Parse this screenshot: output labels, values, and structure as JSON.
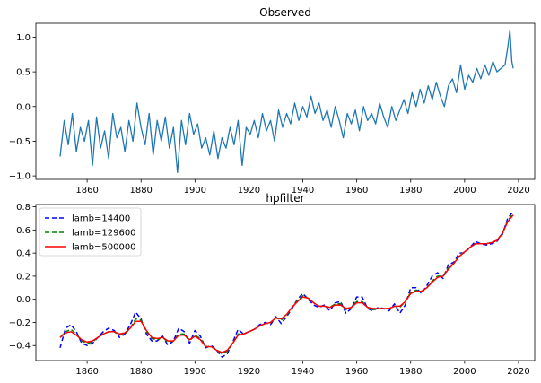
{
  "chart_data": [
    {
      "type": "line",
      "title": "Observed",
      "xlabel": "",
      "ylabel": "",
      "xlim": [
        1841,
        2026
      ],
      "ylim": [
        -1.05,
        1.2
      ],
      "xticks": [
        1860,
        1880,
        1900,
        1920,
        1940,
        1960,
        1980,
        2000,
        2020
      ],
      "yticks": [
        -1.0,
        -0.5,
        0.0,
        0.5,
        1.0
      ],
      "ytick_labels": [
        "−1.0",
        "−0.5",
        "0.0",
        "0.5",
        "1.0"
      ],
      "grid": false,
      "legend": null,
      "series": [
        {
          "color": "#1f77b4",
          "x": [
            1850.0,
            1851.5,
            1853.0,
            1854.5,
            1856.0,
            1857.5,
            1859.0,
            1860.5,
            1862.0,
            1863.5,
            1865.0,
            1866.5,
            1868.0,
            1869.5,
            1871.0,
            1872.5,
            1874.0,
            1875.5,
            1877.0,
            1878.5,
            1880.0,
            1881.5,
            1883.0,
            1884.5,
            1886.0,
            1887.5,
            1889.0,
            1890.5,
            1892.0,
            1893.5,
            1895.0,
            1896.5,
            1898.0,
            1899.5,
            1901.0,
            1902.5,
            1904.0,
            1905.5,
            1907.0,
            1908.5,
            1910.0,
            1911.5,
            1913.0,
            1914.5,
            1916.0,
            1917.5,
            1919.0,
            1920.5,
            1922.0,
            1923.5,
            1925.0,
            1926.5,
            1928.0,
            1929.5,
            1931.0,
            1932.5,
            1934.0,
            1935.5,
            1937.0,
            1938.5,
            1940.0,
            1941.5,
            1943.0,
            1944.5,
            1946.0,
            1947.5,
            1949.0,
            1950.5,
            1952.0,
            1953.5,
            1955.0,
            1956.5,
            1958.0,
            1959.5,
            1961.0,
            1962.5,
            1964.0,
            1965.5,
            1967.0,
            1968.5,
            1970.0,
            1971.5,
            1973.0,
            1974.5,
            1976.0,
            1977.5,
            1979.0,
            1980.5,
            1982.0,
            1983.5,
            1985.0,
            1986.5,
            1988.0,
            1989.5,
            1991.0,
            1992.5,
            1994.0,
            1995.5,
            1997.0,
            1998.5,
            2000.0,
            2001.5,
            2003.0,
            2004.5,
            2006.0,
            2007.5,
            2009.0,
            2010.5,
            2012.0,
            2013.5,
            2015.0,
            2016.0,
            2016.8,
            2017.5,
            2018.0
          ],
          "y": [
            -0.72,
            -0.2,
            -0.55,
            -0.1,
            -0.65,
            -0.3,
            -0.5,
            -0.2,
            -0.85,
            -0.15,
            -0.6,
            -0.35,
            -0.75,
            -0.1,
            -0.45,
            -0.3,
            -0.65,
            -0.2,
            -0.5,
            0.05,
            -0.3,
            -0.55,
            -0.1,
            -0.7,
            -0.2,
            -0.5,
            -0.15,
            -0.6,
            -0.3,
            -0.95,
            -0.2,
            -0.55,
            -0.1,
            -0.4,
            -0.25,
            -0.6,
            -0.45,
            -0.7,
            -0.35,
            -0.75,
            -0.45,
            -0.6,
            -0.3,
            -0.55,
            -0.2,
            -0.85,
            -0.3,
            -0.4,
            -0.2,
            -0.45,
            -0.1,
            -0.35,
            -0.2,
            -0.5,
            -0.05,
            -0.3,
            -0.1,
            -0.25,
            0.05,
            -0.2,
            0.0,
            -0.15,
            0.15,
            -0.1,
            0.05,
            -0.2,
            -0.05,
            -0.3,
            0.0,
            -0.2,
            -0.45,
            -0.1,
            -0.25,
            -0.05,
            -0.35,
            0.0,
            -0.2,
            -0.1,
            -0.25,
            0.05,
            -0.15,
            -0.3,
            0.0,
            -0.2,
            -0.05,
            0.1,
            -0.1,
            0.2,
            0.0,
            0.25,
            0.05,
            0.3,
            0.1,
            0.35,
            0.15,
            0.0,
            0.3,
            0.4,
            0.2,
            0.6,
            0.25,
            0.45,
            0.35,
            0.55,
            0.4,
            0.6,
            0.45,
            0.65,
            0.5,
            0.55,
            0.6,
            0.85,
            1.1,
            0.65,
            0.55
          ]
        }
      ]
    },
    {
      "type": "line",
      "title": "hpfilter",
      "xlabel": "",
      "ylabel": "",
      "xlim": [
        1841,
        2026
      ],
      "ylim": [
        -0.53,
        0.82
      ],
      "xticks": [
        1860,
        1880,
        1900,
        1920,
        1940,
        1960,
        1980,
        2000,
        2020
      ],
      "yticks": [
        -0.4,
        -0.2,
        0.0,
        0.2,
        0.4,
        0.6,
        0.8
      ],
      "ytick_labels": [
        "−0.4",
        "−0.2",
        "0.0",
        "0.2",
        "0.4",
        "0.6",
        "0.8"
      ],
      "grid": false,
      "legend": "top-left",
      "series": [
        {
          "name": "lamb=14400",
          "color": "#0000ff",
          "dash": "dashed",
          "x": [
            1850,
            1852,
            1854,
            1856,
            1858,
            1860,
            1862,
            1864,
            1866,
            1868,
            1870,
            1872,
            1874,
            1876,
            1878,
            1880,
            1882,
            1884,
            1886,
            1888,
            1890,
            1892,
            1894,
            1896,
            1898,
            1900,
            1902,
            1904,
            1906,
            1908,
            1910,
            1912,
            1914,
            1916,
            1918,
            1920,
            1922,
            1924,
            1926,
            1928,
            1930,
            1932,
            1934,
            1936,
            1938,
            1940,
            1942,
            1944,
            1946,
            1948,
            1950,
            1952,
            1954,
            1956,
            1958,
            1960,
            1962,
            1964,
            1966,
            1968,
            1970,
            1972,
            1974,
            1976,
            1978,
            1980,
            1982,
            1984,
            1986,
            1988,
            1990,
            1992,
            1994,
            1996,
            1998,
            2000,
            2002,
            2004,
            2006,
            2008,
            2010,
            2012,
            2014,
            2016,
            2018
          ],
          "y": [
            -0.42,
            -0.25,
            -0.22,
            -0.28,
            -0.38,
            -0.4,
            -0.38,
            -0.33,
            -0.28,
            -0.25,
            -0.27,
            -0.33,
            -0.3,
            -0.22,
            -0.11,
            -0.17,
            -0.3,
            -0.36,
            -0.36,
            -0.32,
            -0.4,
            -0.36,
            -0.25,
            -0.28,
            -0.38,
            -0.27,
            -0.32,
            -0.42,
            -0.4,
            -0.44,
            -0.5,
            -0.47,
            -0.37,
            -0.26,
            -0.3,
            -0.28,
            -0.26,
            -0.22,
            -0.2,
            -0.22,
            -0.15,
            -0.21,
            -0.15,
            -0.08,
            0.0,
            0.05,
            0.0,
            -0.05,
            -0.07,
            -0.05,
            -0.1,
            -0.03,
            -0.02,
            -0.12,
            -0.08,
            0.02,
            0.02,
            -0.08,
            -0.1,
            -0.07,
            -0.08,
            -0.1,
            -0.04,
            -0.12,
            -0.05,
            0.1,
            0.1,
            0.05,
            0.12,
            0.2,
            0.23,
            0.18,
            0.3,
            0.32,
            0.4,
            0.4,
            0.45,
            0.5,
            0.48,
            0.47,
            0.48,
            0.5,
            0.56,
            0.7,
            0.76
          ]
        },
        {
          "name": "lamb=129600",
          "color": "#008000",
          "dash": "dashed",
          "x": [
            1850,
            1852,
            1854,
            1856,
            1858,
            1860,
            1862,
            1864,
            1866,
            1868,
            1870,
            1872,
            1874,
            1876,
            1878,
            1880,
            1882,
            1884,
            1886,
            1888,
            1890,
            1892,
            1894,
            1896,
            1898,
            1900,
            1902,
            1904,
            1906,
            1908,
            1910,
            1912,
            1914,
            1916,
            1918,
            1920,
            1922,
            1924,
            1926,
            1928,
            1930,
            1932,
            1934,
            1936,
            1938,
            1940,
            1942,
            1944,
            1946,
            1948,
            1950,
            1952,
            1954,
            1956,
            1958,
            1960,
            1962,
            1964,
            1966,
            1968,
            1970,
            1972,
            1974,
            1976,
            1978,
            1980,
            1982,
            1984,
            1986,
            1988,
            1990,
            1992,
            1994,
            1996,
            1998,
            2000,
            2002,
            2004,
            2006,
            2008,
            2010,
            2012,
            2014,
            2016,
            2018
          ],
          "y": [
            -0.33,
            -0.28,
            -0.26,
            -0.3,
            -0.36,
            -0.38,
            -0.37,
            -0.33,
            -0.3,
            -0.28,
            -0.28,
            -0.31,
            -0.3,
            -0.25,
            -0.17,
            -0.18,
            -0.28,
            -0.34,
            -0.35,
            -0.33,
            -0.37,
            -0.36,
            -0.3,
            -0.3,
            -0.36,
            -0.31,
            -0.34,
            -0.41,
            -0.41,
            -0.44,
            -0.47,
            -0.45,
            -0.38,
            -0.3,
            -0.3,
            -0.28,
            -0.26,
            -0.23,
            -0.21,
            -0.2,
            -0.16,
            -0.18,
            -0.14,
            -0.07,
            -0.01,
            0.03,
            0.01,
            -0.03,
            -0.06,
            -0.06,
            -0.07,
            -0.04,
            -0.04,
            -0.09,
            -0.07,
            -0.02,
            -0.02,
            -0.07,
            -0.09,
            -0.08,
            -0.08,
            -0.08,
            -0.06,
            -0.07,
            -0.02,
            0.06,
            0.08,
            0.07,
            0.1,
            0.16,
            0.2,
            0.2,
            0.27,
            0.31,
            0.38,
            0.41,
            0.45,
            0.48,
            0.48,
            0.48,
            0.49,
            0.51,
            0.57,
            0.68,
            0.74
          ]
        },
        {
          "name": "lamb=500000",
          "color": "#ff0000",
          "dash": "solid",
          "x": [
            1850,
            1852,
            1854,
            1856,
            1858,
            1860,
            1862,
            1864,
            1866,
            1868,
            1870,
            1872,
            1874,
            1876,
            1878,
            1880,
            1882,
            1884,
            1886,
            1888,
            1890,
            1892,
            1894,
            1896,
            1898,
            1900,
            1902,
            1904,
            1906,
            1908,
            1910,
            1912,
            1914,
            1916,
            1918,
            1920,
            1922,
            1924,
            1926,
            1928,
            1930,
            1932,
            1934,
            1936,
            1938,
            1940,
            1942,
            1944,
            1946,
            1948,
            1950,
            1952,
            1954,
            1956,
            1958,
            1960,
            1962,
            1964,
            1966,
            1968,
            1970,
            1972,
            1974,
            1976,
            1978,
            1980,
            1982,
            1984,
            1986,
            1988,
            1990,
            1992,
            1994,
            1996,
            1998,
            2000,
            2002,
            2004,
            2006,
            2008,
            2010,
            2012,
            2014,
            2016,
            2018
          ],
          "y": [
            -0.33,
            -0.29,
            -0.28,
            -0.31,
            -0.35,
            -0.37,
            -0.36,
            -0.33,
            -0.3,
            -0.28,
            -0.28,
            -0.3,
            -0.29,
            -0.25,
            -0.19,
            -0.19,
            -0.27,
            -0.33,
            -0.34,
            -0.33,
            -0.36,
            -0.36,
            -0.31,
            -0.31,
            -0.35,
            -0.32,
            -0.35,
            -0.41,
            -0.41,
            -0.44,
            -0.46,
            -0.44,
            -0.38,
            -0.31,
            -0.3,
            -0.28,
            -0.26,
            -0.23,
            -0.21,
            -0.2,
            -0.16,
            -0.17,
            -0.13,
            -0.07,
            -0.02,
            0.02,
            0.01,
            -0.03,
            -0.06,
            -0.06,
            -0.07,
            -0.05,
            -0.05,
            -0.08,
            -0.07,
            -0.03,
            -0.03,
            -0.07,
            -0.08,
            -0.08,
            -0.08,
            -0.08,
            -0.06,
            -0.06,
            -0.02,
            0.05,
            0.07,
            0.07,
            0.1,
            0.15,
            0.19,
            0.2,
            0.26,
            0.31,
            0.37,
            0.41,
            0.45,
            0.48,
            0.48,
            0.48,
            0.49,
            0.51,
            0.57,
            0.67,
            0.73
          ]
        }
      ]
    }
  ]
}
